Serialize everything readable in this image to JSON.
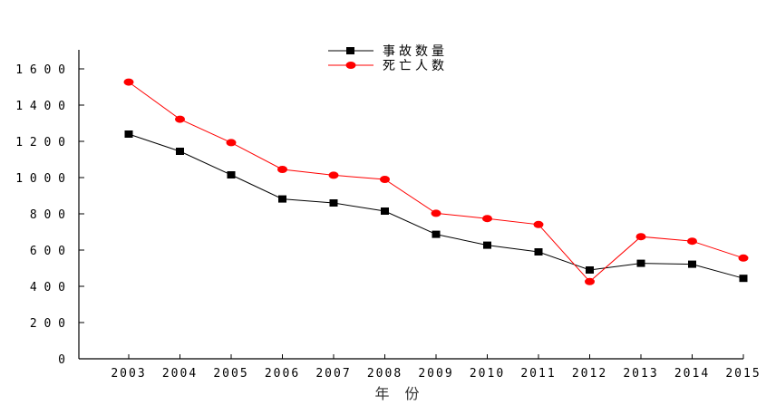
{
  "chart_data": {
    "type": "line",
    "title": "",
    "xlabel": "年 份",
    "ylabel": "",
    "categories": [
      "2003",
      "2004",
      "2005",
      "2006",
      "2007",
      "2008",
      "2009",
      "2010",
      "2011",
      "2012",
      "2013",
      "2014",
      "2015"
    ],
    "yticks": [
      "0",
      "200",
      "400",
      "600",
      "800",
      "1000",
      "1200",
      "1400",
      "1600"
    ],
    "ylim": [
      0,
      1700
    ],
    "grid": false,
    "legend_position": "top-center",
    "series": [
      {
        "name": "事故数量",
        "color": "#000000",
        "marker": "square",
        "values": [
          1240,
          1145,
          1015,
          882,
          860,
          815,
          687,
          627,
          590,
          490,
          527,
          522,
          444
        ]
      },
      {
        "name": "死亡人数",
        "color": "#ff0000",
        "marker": "circle",
        "values": [
          1527,
          1322,
          1193,
          1045,
          1013,
          990,
          803,
          774,
          741,
          426,
          674,
          649,
          556
        ]
      }
    ]
  }
}
